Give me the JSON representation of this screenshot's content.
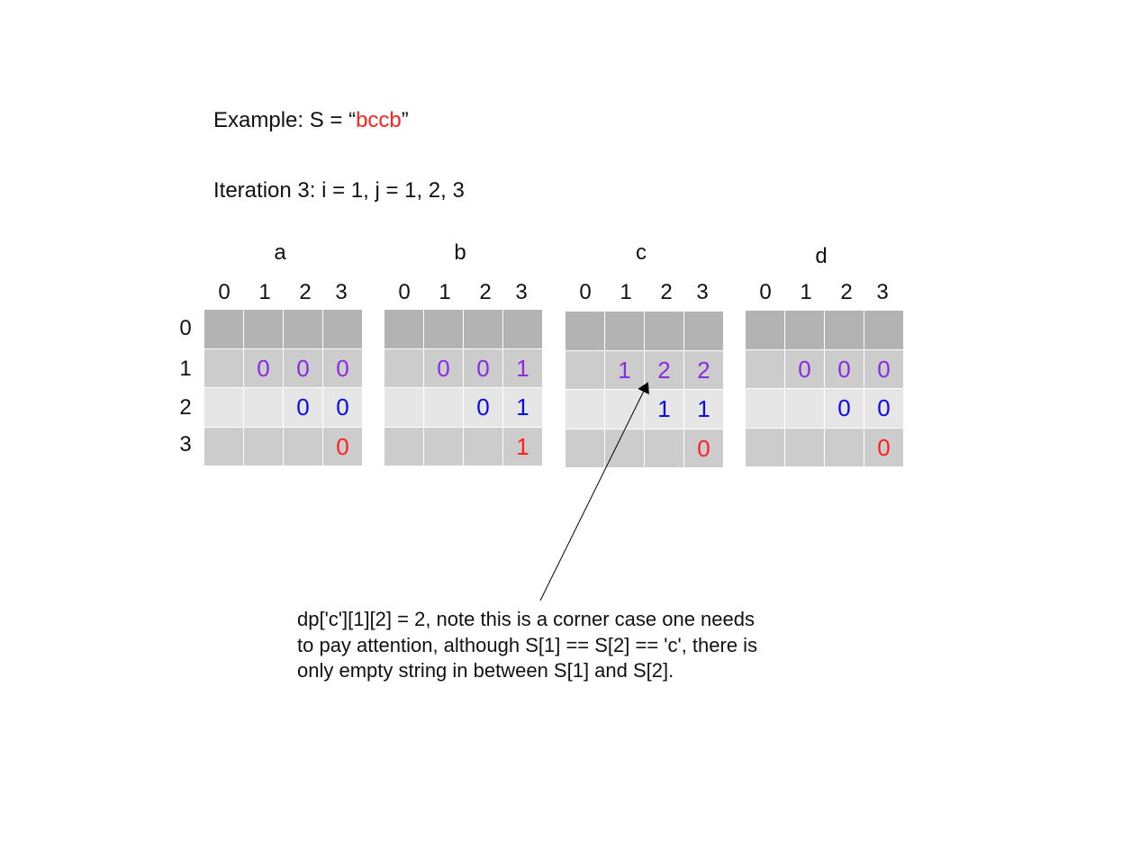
{
  "title": {
    "prefix": "Example: S = “",
    "highlight": "bccb",
    "suffix": "”"
  },
  "iteration": "Iteration 3: i = 1, j = 1, 2, 3",
  "row_labels": [
    "0",
    "1",
    "2",
    "3"
  ],
  "col_labels": [
    "0",
    "1",
    "2",
    "3"
  ],
  "colors": {
    "i_row": "#8a2be2",
    "j_row": "#0a0af0",
    "diag": "#ff2020"
  },
  "tables": [
    {
      "name": "a",
      "cells": [
        [
          "",
          "",
          "",
          ""
        ],
        [
          "",
          "0",
          "0",
          "0"
        ],
        [
          "",
          "",
          "0",
          "0"
        ],
        [
          "",
          "",
          "",
          "0"
        ]
      ]
    },
    {
      "name": "b",
      "cells": [
        [
          "",
          "",
          "",
          ""
        ],
        [
          "",
          "0",
          "0",
          "1"
        ],
        [
          "",
          "",
          "0",
          "1"
        ],
        [
          "",
          "",
          "",
          "1"
        ]
      ]
    },
    {
      "name": "c",
      "cells": [
        [
          "",
          "",
          "",
          ""
        ],
        [
          "",
          "1",
          "2",
          "2"
        ],
        [
          "",
          "",
          "1",
          "1"
        ],
        [
          "",
          "",
          "",
          "0"
        ]
      ]
    },
    {
      "name": "d",
      "cells": [
        [
          "",
          "",
          "",
          ""
        ],
        [
          "",
          "0",
          "0",
          "0"
        ],
        [
          "",
          "",
          "0",
          "0"
        ],
        [
          "",
          "",
          "",
          "0"
        ]
      ]
    }
  ],
  "note": {
    "lines": [
      "dp['c'][1][2] = 2, note this is a corner case one needs",
      "to pay attention, although S[1] == S[2] == 'c', there is",
      "only empty string in between S[1] and S[2]."
    ]
  }
}
